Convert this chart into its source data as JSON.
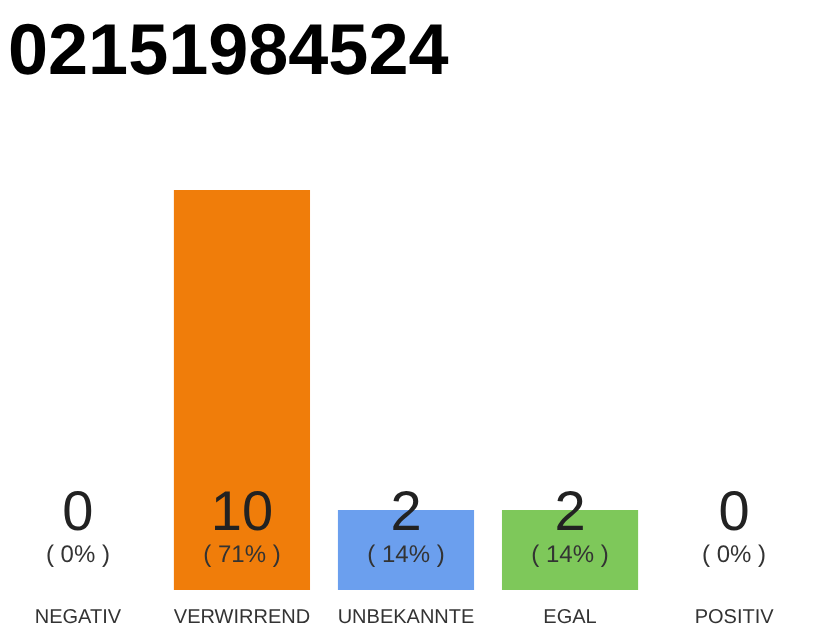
{
  "chart_data": {
    "type": "bar",
    "title": "02151984524",
    "categories": [
      "NEGATIV",
      "VERWIRREND",
      "UNBEKANNTE",
      "EGAL",
      "POSITIV"
    ],
    "values": [
      0,
      10,
      2,
      2,
      0
    ],
    "colors": [
      "#e8334a",
      "#f07d0a",
      "#6b9fee",
      "#7ec85a",
      "#22aa44"
    ],
    "ylim": [
      0,
      10
    ],
    "tick_labels": "x",
    "data_labels": true,
    "grid": false,
    "annotations": [
      "( 0% )",
      "( 71% )",
      "( 14% )",
      "( 14% )",
      "( 0% )"
    ]
  }
}
